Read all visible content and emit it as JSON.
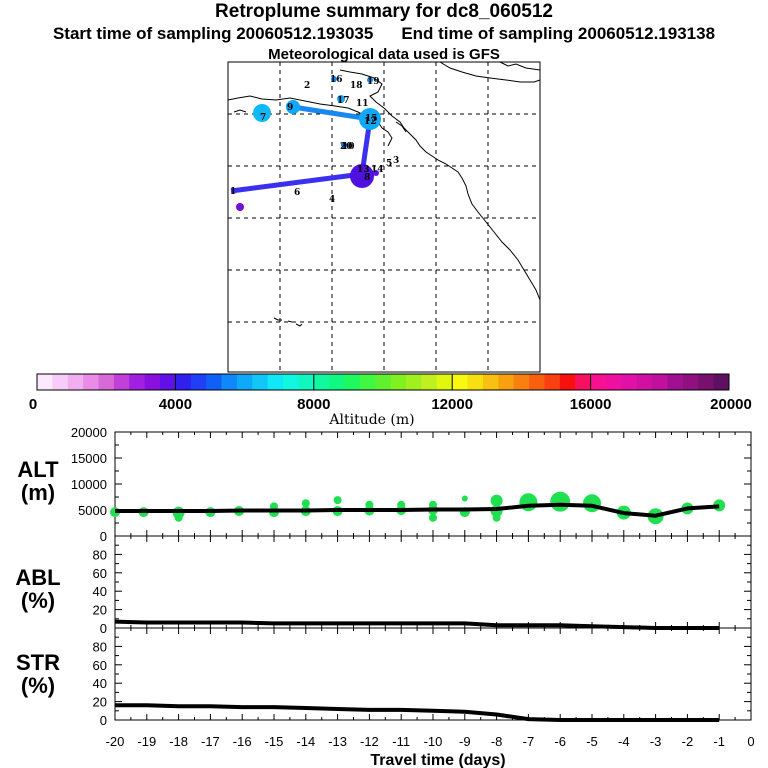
{
  "header": {
    "title": "Retroplume summary for dc8_060512",
    "start_label": "Start time of sampling 20060512.193035",
    "end_label": "End time of sampling 20060512.193138",
    "met_label": "Meteorological data used is GFS"
  },
  "colorbar": {
    "label": "Altitude (m)",
    "tick_labels": [
      "0",
      "4000",
      "8000",
      "12000",
      "16000",
      "20000"
    ],
    "colors": [
      "#fde8fd",
      "#f8ccf8",
      "#f0b0f0",
      "#e88ce8",
      "#d86ad8",
      "#c040d8",
      "#a020e0",
      "#8a10e0",
      "#6010e8",
      "#3020f0",
      "#2040f8",
      "#1060f8",
      "#1088f8",
      "#10a8f8",
      "#10c8f8",
      "#10e8f8",
      "#10f8e0",
      "#10f8c0",
      "#10f8a0",
      "#10f880",
      "#20f860",
      "#40f840",
      "#60f030",
      "#80f020",
      "#a0f020",
      "#c0f020",
      "#e0f810",
      "#f8f810",
      "#f8e010",
      "#f8c010",
      "#f8a010",
      "#f88010",
      "#f86010",
      "#f84010",
      "#f81010",
      "#f81060",
      "#f81090",
      "#f010a0",
      "#e010a8",
      "#d010a0",
      "#c010a0",
      "#a01090",
      "#901080",
      "#781070",
      "#601060"
    ]
  },
  "map": {
    "numbers": [
      "1",
      "2",
      "3",
      "4",
      "5",
      "6",
      "7",
      "8",
      "9",
      "10",
      "11",
      "12",
      "13",
      "14",
      "15",
      "16",
      "17",
      "18",
      "19",
      "20"
    ]
  },
  "axes": {
    "xlabel": "Travel time (days)",
    "x_ticks": [
      "-20",
      "-19",
      "-18",
      "-17",
      "-16",
      "-15",
      "-14",
      "-13",
      "-12",
      "-11",
      "-10",
      "-9",
      "-8",
      "-7",
      "-6",
      "-5",
      "-4",
      "-3",
      "-2",
      "-1",
      "0"
    ],
    "alt": {
      "name": "ALT",
      "unit": "(m)",
      "ticks": [
        "0",
        "5000",
        "10000",
        "15000",
        "20000"
      ]
    },
    "abl": {
      "name": "ABL",
      "unit": "(%)",
      "ticks": [
        "0",
        "20",
        "40",
        "60",
        "80"
      ]
    },
    "str": {
      "name": "STR",
      "unit": "(%)",
      "ticks": [
        "0",
        "20",
        "40",
        "60",
        "80"
      ]
    }
  },
  "chart_data": [
    {
      "type": "line",
      "title": "ALT",
      "xlabel": "Travel time (days)",
      "ylabel": "(m)",
      "xlim": [
        -20,
        0
      ],
      "ylim": [
        0,
        20000
      ],
      "x": [
        -20,
        -19,
        -18,
        -17,
        -16,
        -15,
        -14,
        -13,
        -12,
        -11,
        -10,
        -9,
        -8,
        -7,
        -6,
        -5,
        -4,
        -3,
        -2,
        -1
      ],
      "values": [
        4800,
        4800,
        4800,
        4800,
        4900,
        4900,
        4900,
        5000,
        5000,
        5000,
        5100,
        5100,
        5200,
        5800,
        6000,
        5800,
        4400,
        3900,
        5300,
        5700
      ]
    },
    {
      "type": "scatter",
      "title": "ALT samples",
      "series": [
        {
          "name": "particles",
          "color": "#20e050",
          "points": [
            [
              -20,
              4600
            ],
            [
              -19.1,
              4600
            ],
            [
              -18,
              4500
            ],
            [
              -18,
              3500
            ],
            [
              -17,
              4600
            ],
            [
              -16.1,
              4800
            ],
            [
              -15,
              4600
            ],
            [
              -15,
              5700
            ],
            [
              -14,
              4800
            ],
            [
              -14,
              6300
            ],
            [
              -13,
              4800
            ],
            [
              -13,
              6900
            ],
            [
              -12,
              4900
            ],
            [
              -12,
              6000
            ],
            [
              -11,
              5000
            ],
            [
              -11,
              6000
            ],
            [
              -10,
              5000
            ],
            [
              -10,
              6000
            ],
            [
              -10,
              3500
            ],
            [
              -9,
              4600
            ],
            [
              -9,
              7200
            ],
            [
              -8,
              4800
            ],
            [
              -8,
              6800
            ],
            [
              -8,
              3500
            ],
            [
              -7,
              6500
            ],
            [
              -6,
              6600
            ],
            [
              -5,
              6300
            ],
            [
              -4,
              4500
            ],
            [
              -3,
              3800
            ],
            [
              -2,
              5300
            ],
            [
              -1,
              5900
            ]
          ]
        }
      ]
    },
    {
      "type": "line",
      "title": "ABL",
      "xlabel": "Travel time (days)",
      "ylabel": "(%)",
      "xlim": [
        -20,
        0
      ],
      "ylim": [
        0,
        100
      ],
      "x": [
        -20,
        -19,
        -18,
        -17,
        -16,
        -15,
        -14,
        -13,
        -12,
        -11,
        -10,
        -9,
        -8,
        -7,
        -6,
        -5,
        -4,
        -3,
        -2,
        -1
      ],
      "values": [
        7,
        6,
        6,
        6,
        6,
        5,
        5,
        5,
        5,
        5,
        5,
        5,
        3,
        3,
        3,
        2,
        1,
        0,
        0,
        0
      ]
    },
    {
      "type": "line",
      "title": "STR",
      "xlabel": "Travel time (days)",
      "ylabel": "(%)",
      "xlim": [
        -20,
        0
      ],
      "ylim": [
        0,
        100
      ],
      "x": [
        -20,
        -19,
        -18,
        -17,
        -16,
        -15,
        -14,
        -13,
        -12,
        -11,
        -10,
        -9,
        -8,
        -7,
        -6,
        -5,
        -4,
        -3,
        -2,
        -1
      ],
      "values": [
        16,
        16,
        15,
        15,
        14,
        14,
        13,
        12,
        11,
        11,
        10,
        9,
        6,
        1,
        0,
        0,
        0,
        0,
        0,
        0
      ]
    }
  ]
}
